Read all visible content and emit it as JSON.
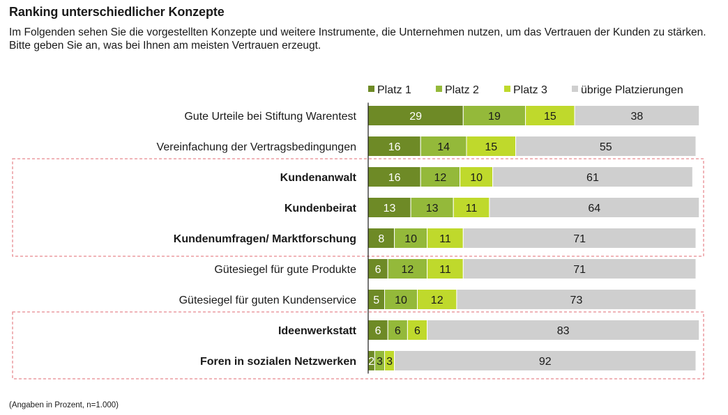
{
  "header": {
    "title": "Ranking unterschiedlicher Konzepte",
    "subtitle": "Im Folgenden sehen Sie die vorgestellten Konzepte und weitere Instrumente, die Unternehmen nutzen, um das Vertrauen der Kunden zu stärken. Bitte geben Sie an, was bei Ihnen am meisten Vertrauen erzeugt."
  },
  "footnote": "(Angaben in Prozent, n=1.000)",
  "chart_data": {
    "type": "bar",
    "orientation": "horizontal",
    "stacked": true,
    "title": "Ranking unterschiedlicher Konzepte",
    "xlim": [
      0,
      100
    ],
    "legend_position": "top",
    "categories": [
      "Gute Urteile bei Stiftung Warentest",
      "Vereinfachung der Vertragsbedingungen",
      "Kundenanwalt",
      "Kundenbeirat",
      "Kundenumfragen/ Marktforschung",
      "Gütesiegel für gute Produkte",
      "Gütesiegel für guten Kundenservice",
      "Ideenwerkstatt",
      "Foren in sozialen Netzwerken"
    ],
    "bold_categories": [
      false,
      false,
      true,
      true,
      true,
      false,
      false,
      true,
      true
    ],
    "highlight_groups": [
      [
        2,
        4
      ],
      [
        7,
        8
      ]
    ],
    "series": [
      {
        "name": "Platz 1",
        "color": "#6e8a26",
        "text_color": "#ffffff",
        "values": [
          29,
          16,
          16,
          13,
          8,
          6,
          5,
          6,
          2
        ]
      },
      {
        "name": "Platz 2",
        "color": "#94b93a",
        "text_color": "#1a1a1a",
        "values": [
          19,
          14,
          12,
          13,
          10,
          12,
          10,
          6,
          3
        ]
      },
      {
        "name": "Platz 3",
        "color": "#bfd92c",
        "text_color": "#1a1a1a",
        "values": [
          15,
          15,
          10,
          11,
          11,
          11,
          12,
          6,
          3
        ]
      },
      {
        "name": "übrige Platzierungen",
        "color": "#cfcfcf",
        "text_color": "#1a1a1a",
        "values": [
          38,
          55,
          61,
          64,
          71,
          71,
          73,
          83,
          92
        ]
      }
    ]
  }
}
